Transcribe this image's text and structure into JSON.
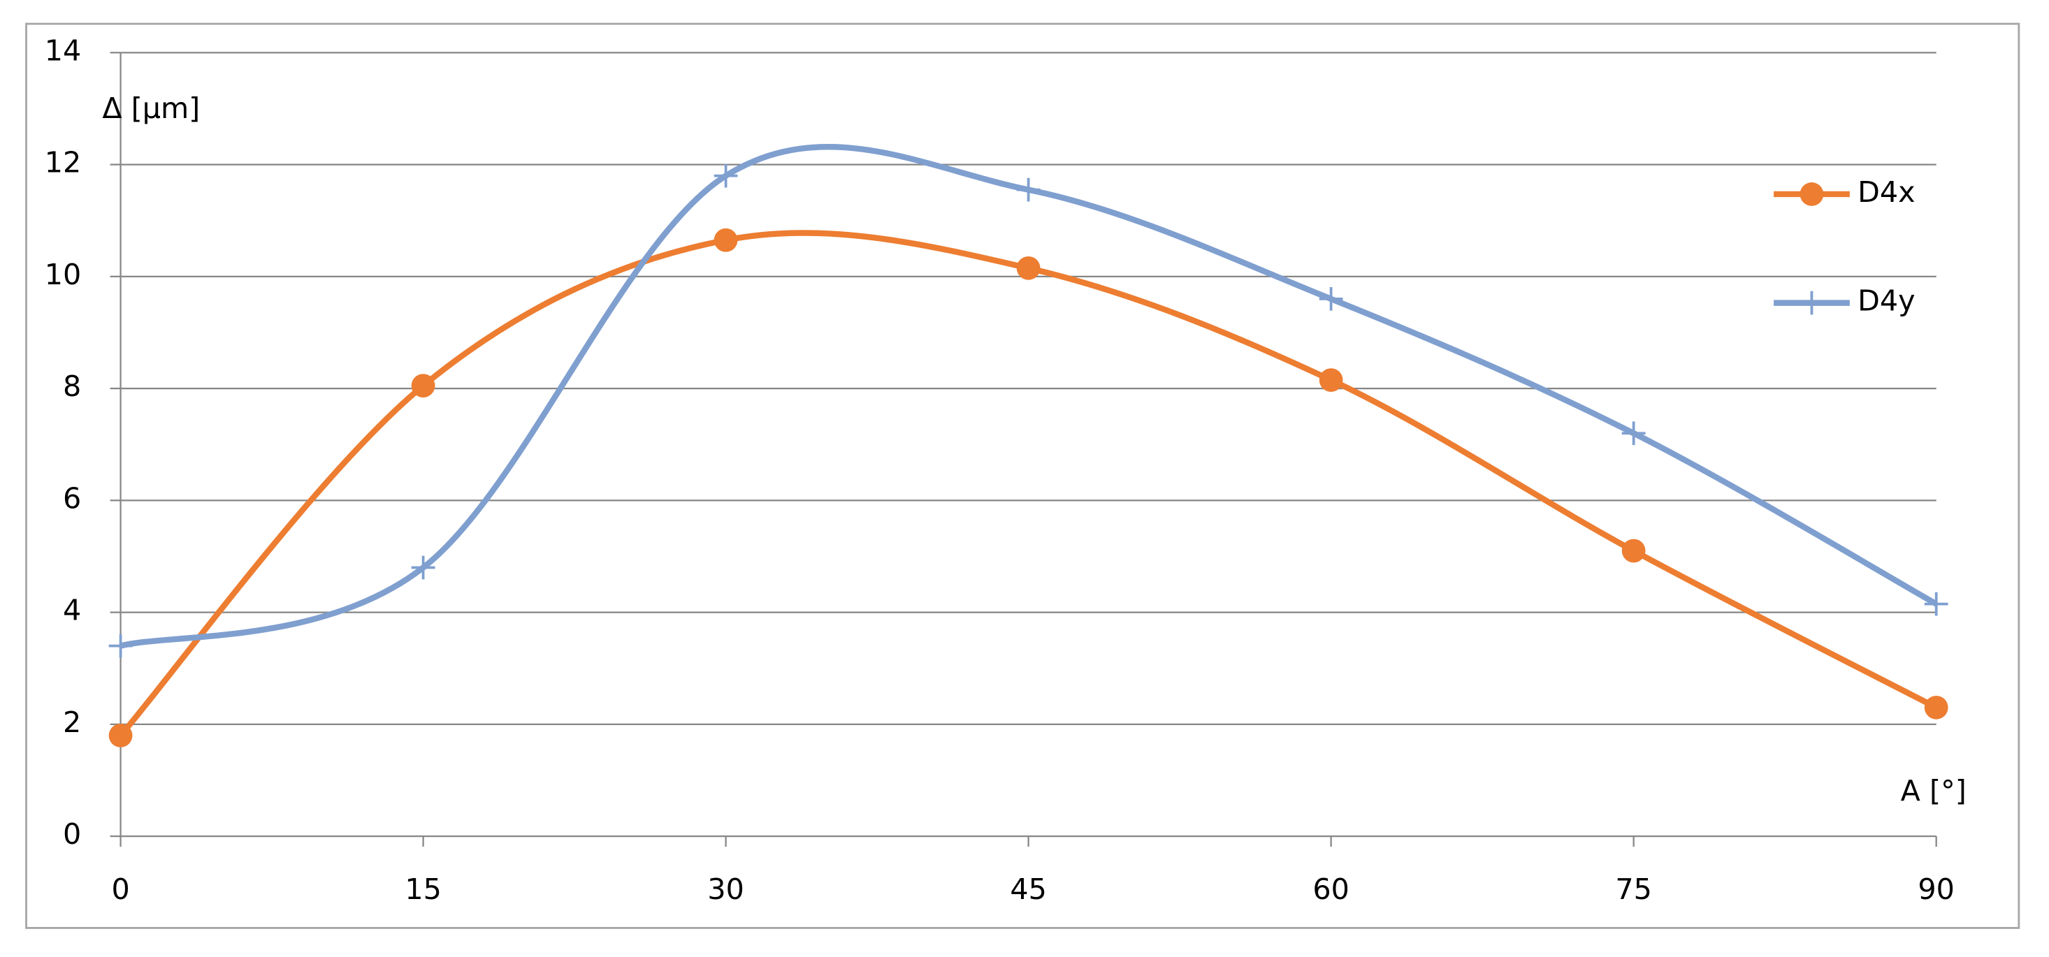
{
  "chart_data": {
    "type": "line",
    "x_label": "A [°]",
    "y_label": "Δ [µm]",
    "x": [
      0,
      15,
      30,
      45,
      60,
      75,
      90
    ],
    "series": [
      {
        "name": "D4x",
        "color": "#ed7d31",
        "marker": "circle",
        "values": [
          1.8,
          8.05,
          10.65,
          10.15,
          8.15,
          5.1,
          2.3
        ]
      },
      {
        "name": "D4y",
        "color": "#7f9fcf",
        "marker": "plus",
        "values": [
          3.4,
          4.8,
          11.8,
          11.55,
          9.6,
          7.2,
          4.15
        ]
      }
    ],
    "xlim": [
      0,
      90
    ],
    "xticks": [
      0,
      15,
      30,
      45,
      60,
      75,
      90
    ],
    "ylim": [
      0,
      14
    ],
    "yticks": [
      0,
      2,
      4,
      6,
      8,
      10,
      12,
      14
    ],
    "grid": true,
    "smooth": true,
    "legend": "right"
  }
}
